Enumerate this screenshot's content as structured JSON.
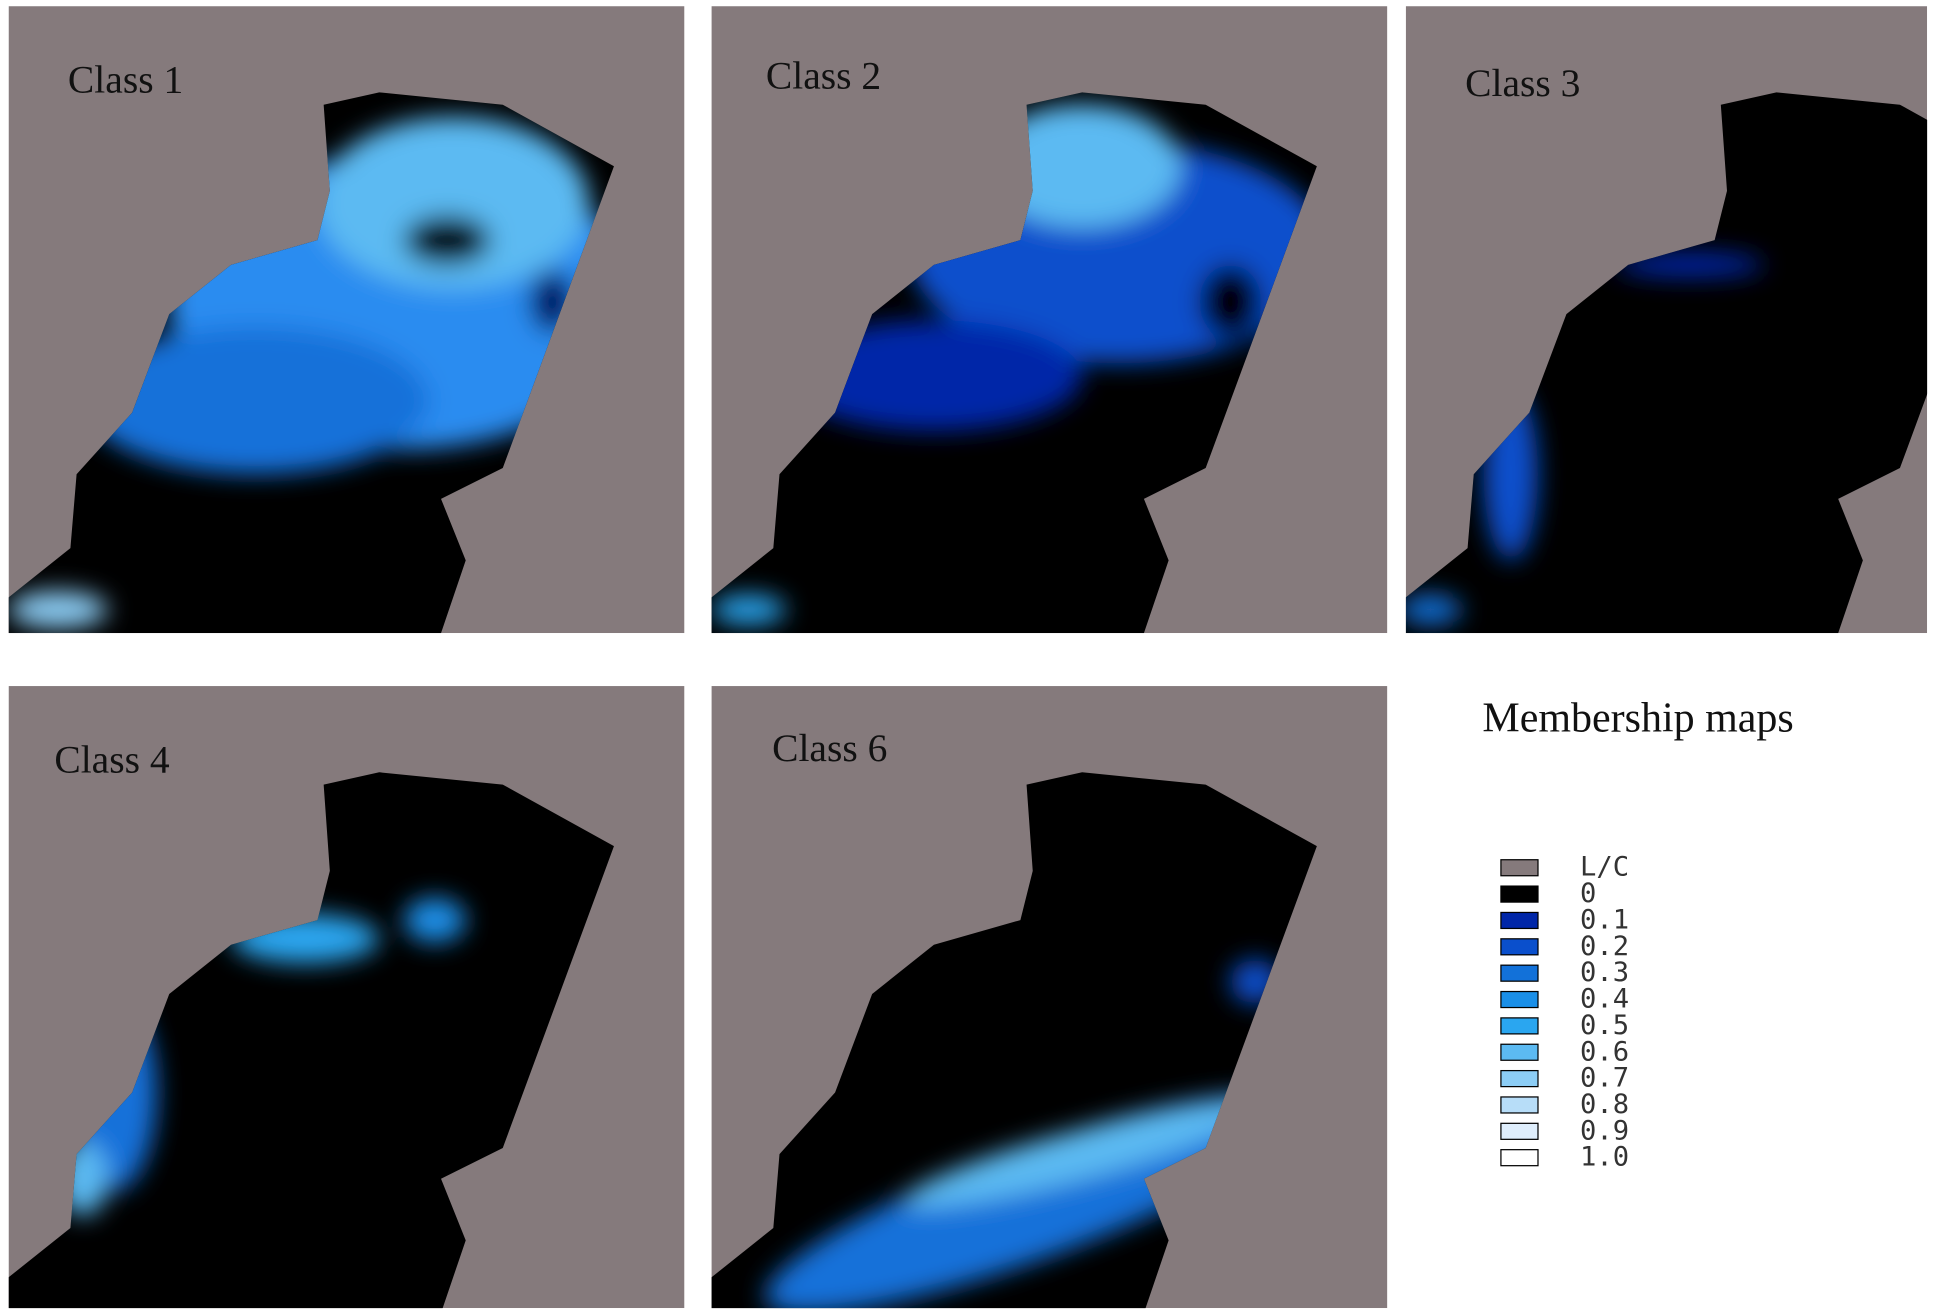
{
  "panels": [
    {
      "label": "Class 1"
    },
    {
      "label": "Class 2"
    },
    {
      "label": "Class 3"
    },
    {
      "label": "Class 4"
    },
    {
      "label": "Class 6"
    }
  ],
  "legend": {
    "title": "Membership maps",
    "items": [
      {
        "label": "L/C",
        "color": "#857a7c"
      },
      {
        "label": "0",
        "color": "#000000"
      },
      {
        "label": "0.1",
        "color": "#0026a8"
      },
      {
        "label": "0.2",
        "color": "#0a4fcc"
      },
      {
        "label": "0.3",
        "color": "#1271d9"
      },
      {
        "label": "0.4",
        "color": "#1a8fe8"
      },
      {
        "label": "0.5",
        "color": "#2aa6f0"
      },
      {
        "label": "0.6",
        "color": "#5cbaf2"
      },
      {
        "label": "0.7",
        "color": "#8ccdf5"
      },
      {
        "label": "0.8",
        "color": "#b7ddf8"
      },
      {
        "label": "0.9",
        "color": "#dfeefc"
      },
      {
        "label": "1.0",
        "color": "#ffffff"
      }
    ]
  }
}
